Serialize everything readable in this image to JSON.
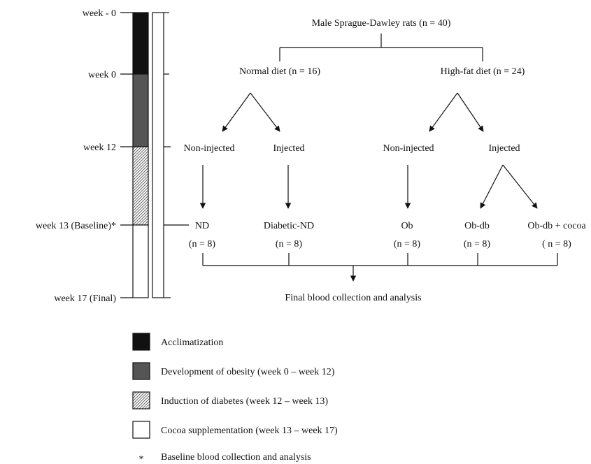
{
  "timeline": {
    "week_minus0": "week - 0",
    "week_0": "week 0",
    "week_12": "week 12",
    "week_13": "week 13 (Baseline)*",
    "week_17": "week 17 (Final)"
  },
  "flow": {
    "root": "Male Sprague-Dawley rats (n = 40)",
    "normal_diet": "Normal diet (n = 16)",
    "high_fat_diet": "High-fat diet (n = 24)",
    "nd_non_injected": "Non-injected",
    "nd_injected": "Injected",
    "hf_non_injected": "Non-injected",
    "hf_injected": "Injected",
    "groups": [
      {
        "name": "ND",
        "n": "(n = 8)"
      },
      {
        "name": "Diabetic-ND",
        "n": "(n = 8)"
      },
      {
        "name": "Ob",
        "n": "(n = 8)"
      },
      {
        "name": "Ob-db",
        "n": "(n = 8)"
      },
      {
        "name": "Ob-db + cocoa",
        "n": "( n = 8)"
      }
    ],
    "final": "Final blood collection and analysis"
  },
  "legend": {
    "acclimatization": "Acclimatization",
    "obesity": "Development of obesity (week 0 – week 12)",
    "diabetes": "Induction of diabetes (week 12 – week 13)",
    "cocoa": "Cocoa supplementation (week 13 – week 17)",
    "asterisk_symbol": "*",
    "asterisk_text": "Baseline blood collection and analysis"
  },
  "colors": {
    "acclimatization": "#111111",
    "obesity": "#555555",
    "cocoa": "#ffffff"
  }
}
